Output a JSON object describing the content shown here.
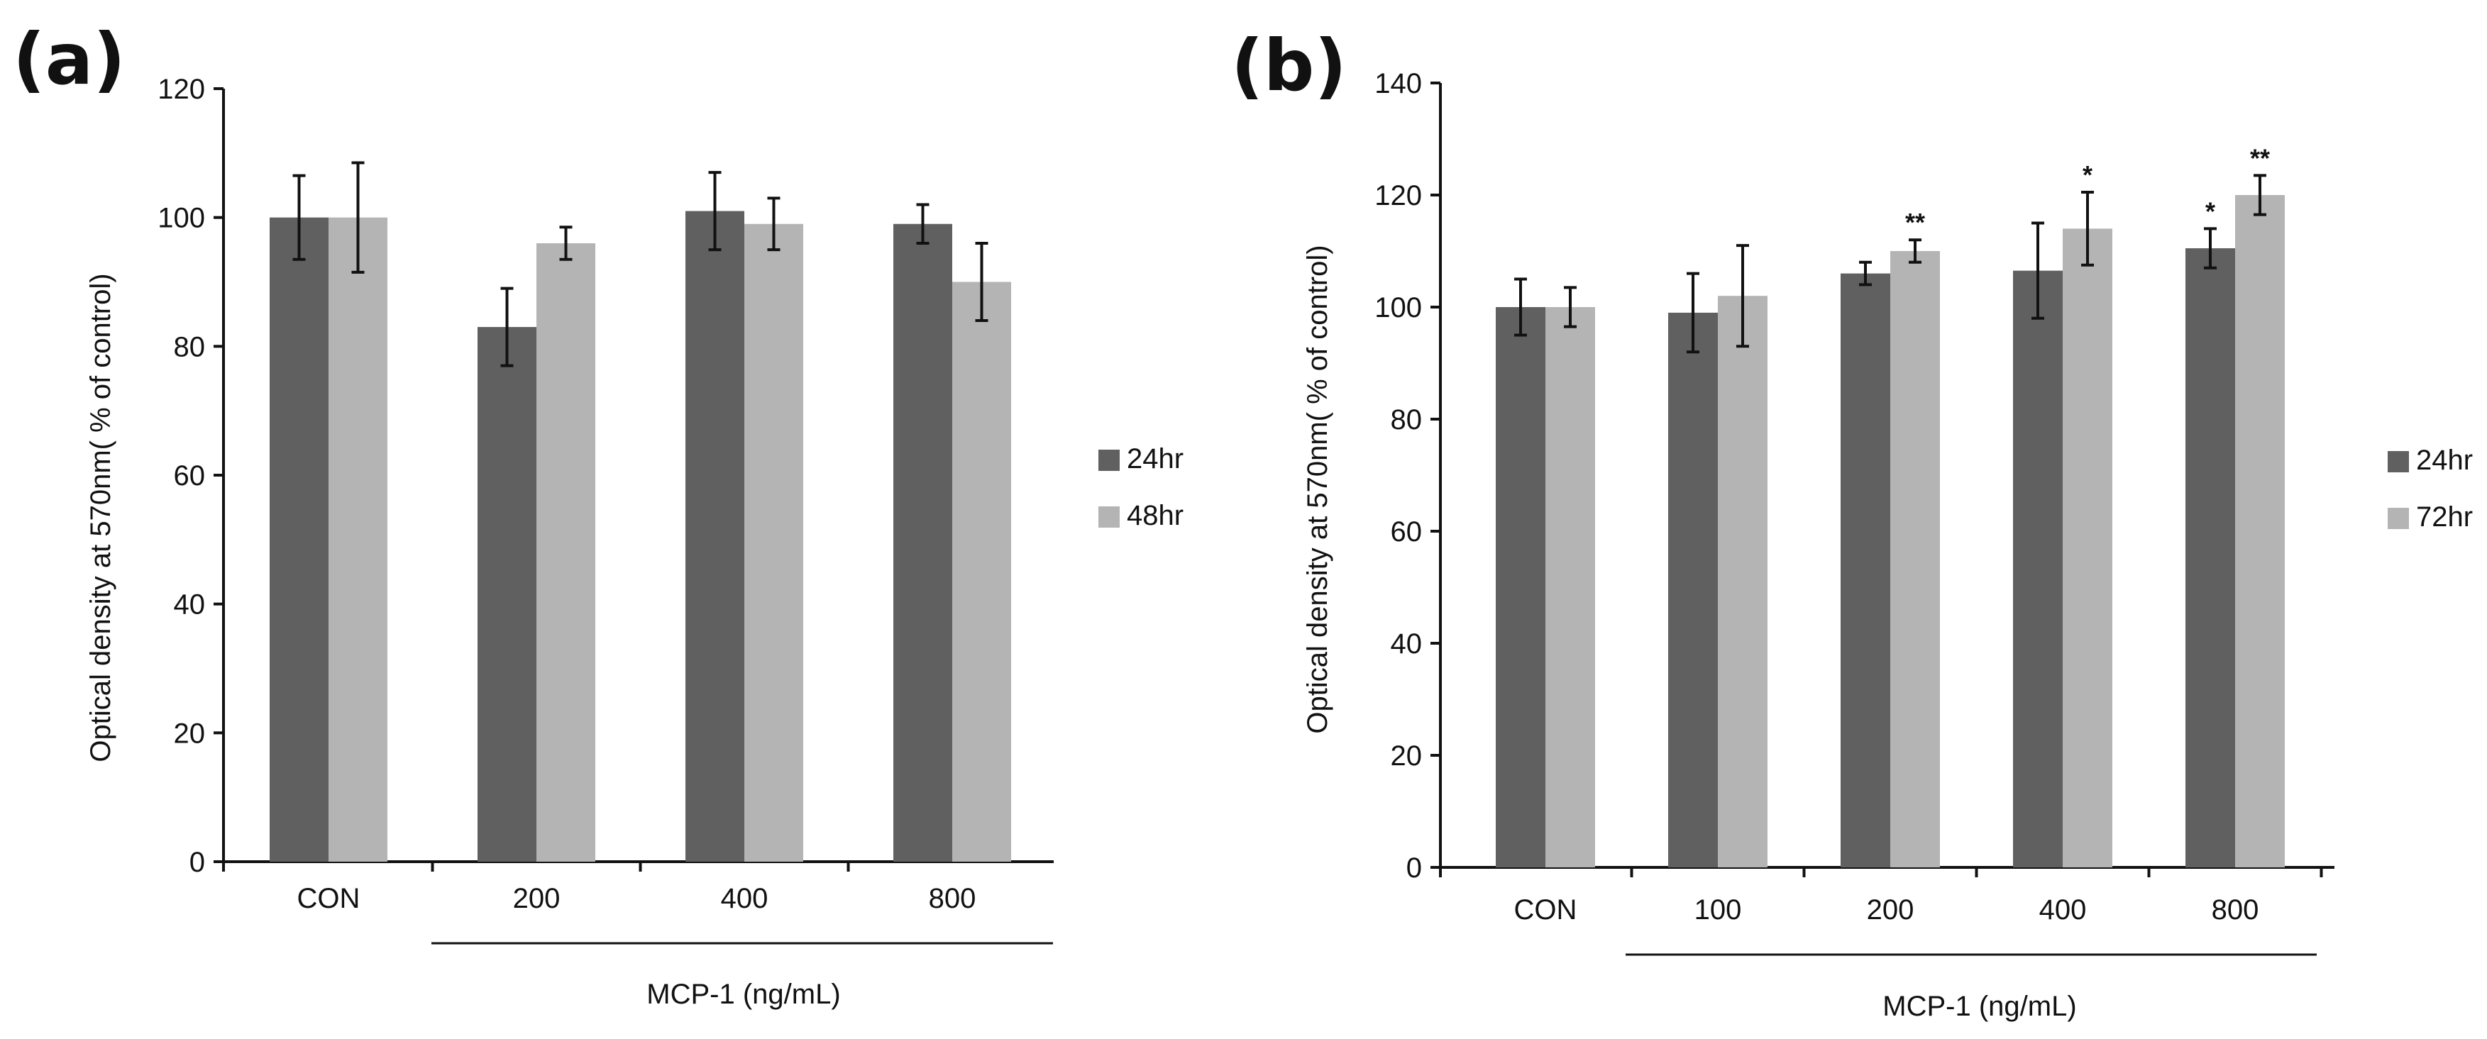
{
  "chart_data": [
    {
      "type": "bar",
      "panel_label": "(a)",
      "categories": [
        "CON",
        "200",
        "400",
        "800"
      ],
      "series": [
        {
          "name": "24hr",
          "color": "#606060",
          "values": [
            100,
            83,
            101,
            99
          ],
          "errors": [
            6.5,
            6,
            6,
            3
          ]
        },
        {
          "name": "48hr",
          "color": "#b4b4b4",
          "values": [
            100,
            96,
            99,
            90
          ],
          "errors": [
            8.5,
            2.5,
            4,
            6
          ]
        }
      ],
      "significance": [
        [
          "",
          "",
          "",
          ""
        ],
        [
          "",
          "",
          "",
          ""
        ]
      ],
      "ylabel": "Optical density at  570nm( % of control)",
      "xlabel": "MCP-1 (ng/mL)",
      "ylim": [
        0,
        120
      ],
      "yticks": [
        0,
        20,
        40,
        60,
        80,
        100,
        120
      ],
      "legend_position": "right"
    },
    {
      "type": "bar",
      "panel_label": "(b)",
      "categories": [
        "CON",
        "100",
        "200",
        "400",
        "800"
      ],
      "series": [
        {
          "name": "24hr",
          "color": "#606060",
          "values": [
            100,
            99,
            106,
            106.5,
            110.5
          ],
          "errors": [
            5,
            7,
            2,
            8.5,
            3.5
          ]
        },
        {
          "name": "72hr",
          "color": "#b4b4b4",
          "values": [
            100,
            102,
            110,
            114,
            120
          ],
          "errors": [
            3.5,
            9,
            2,
            6.5,
            3.5
          ]
        }
      ],
      "significance": [
        [
          "",
          "",
          "",
          "",
          "*"
        ],
        [
          "",
          "",
          "**",
          "*",
          "**"
        ]
      ],
      "ylabel": "Optical density at  570nm( % of control)",
      "xlabel": "MCP-1 (ng/mL)",
      "ylim": [
        0,
        140
      ],
      "yticks": [
        0,
        20,
        40,
        60,
        80,
        100,
        120,
        140
      ],
      "legend_position": "right"
    }
  ]
}
